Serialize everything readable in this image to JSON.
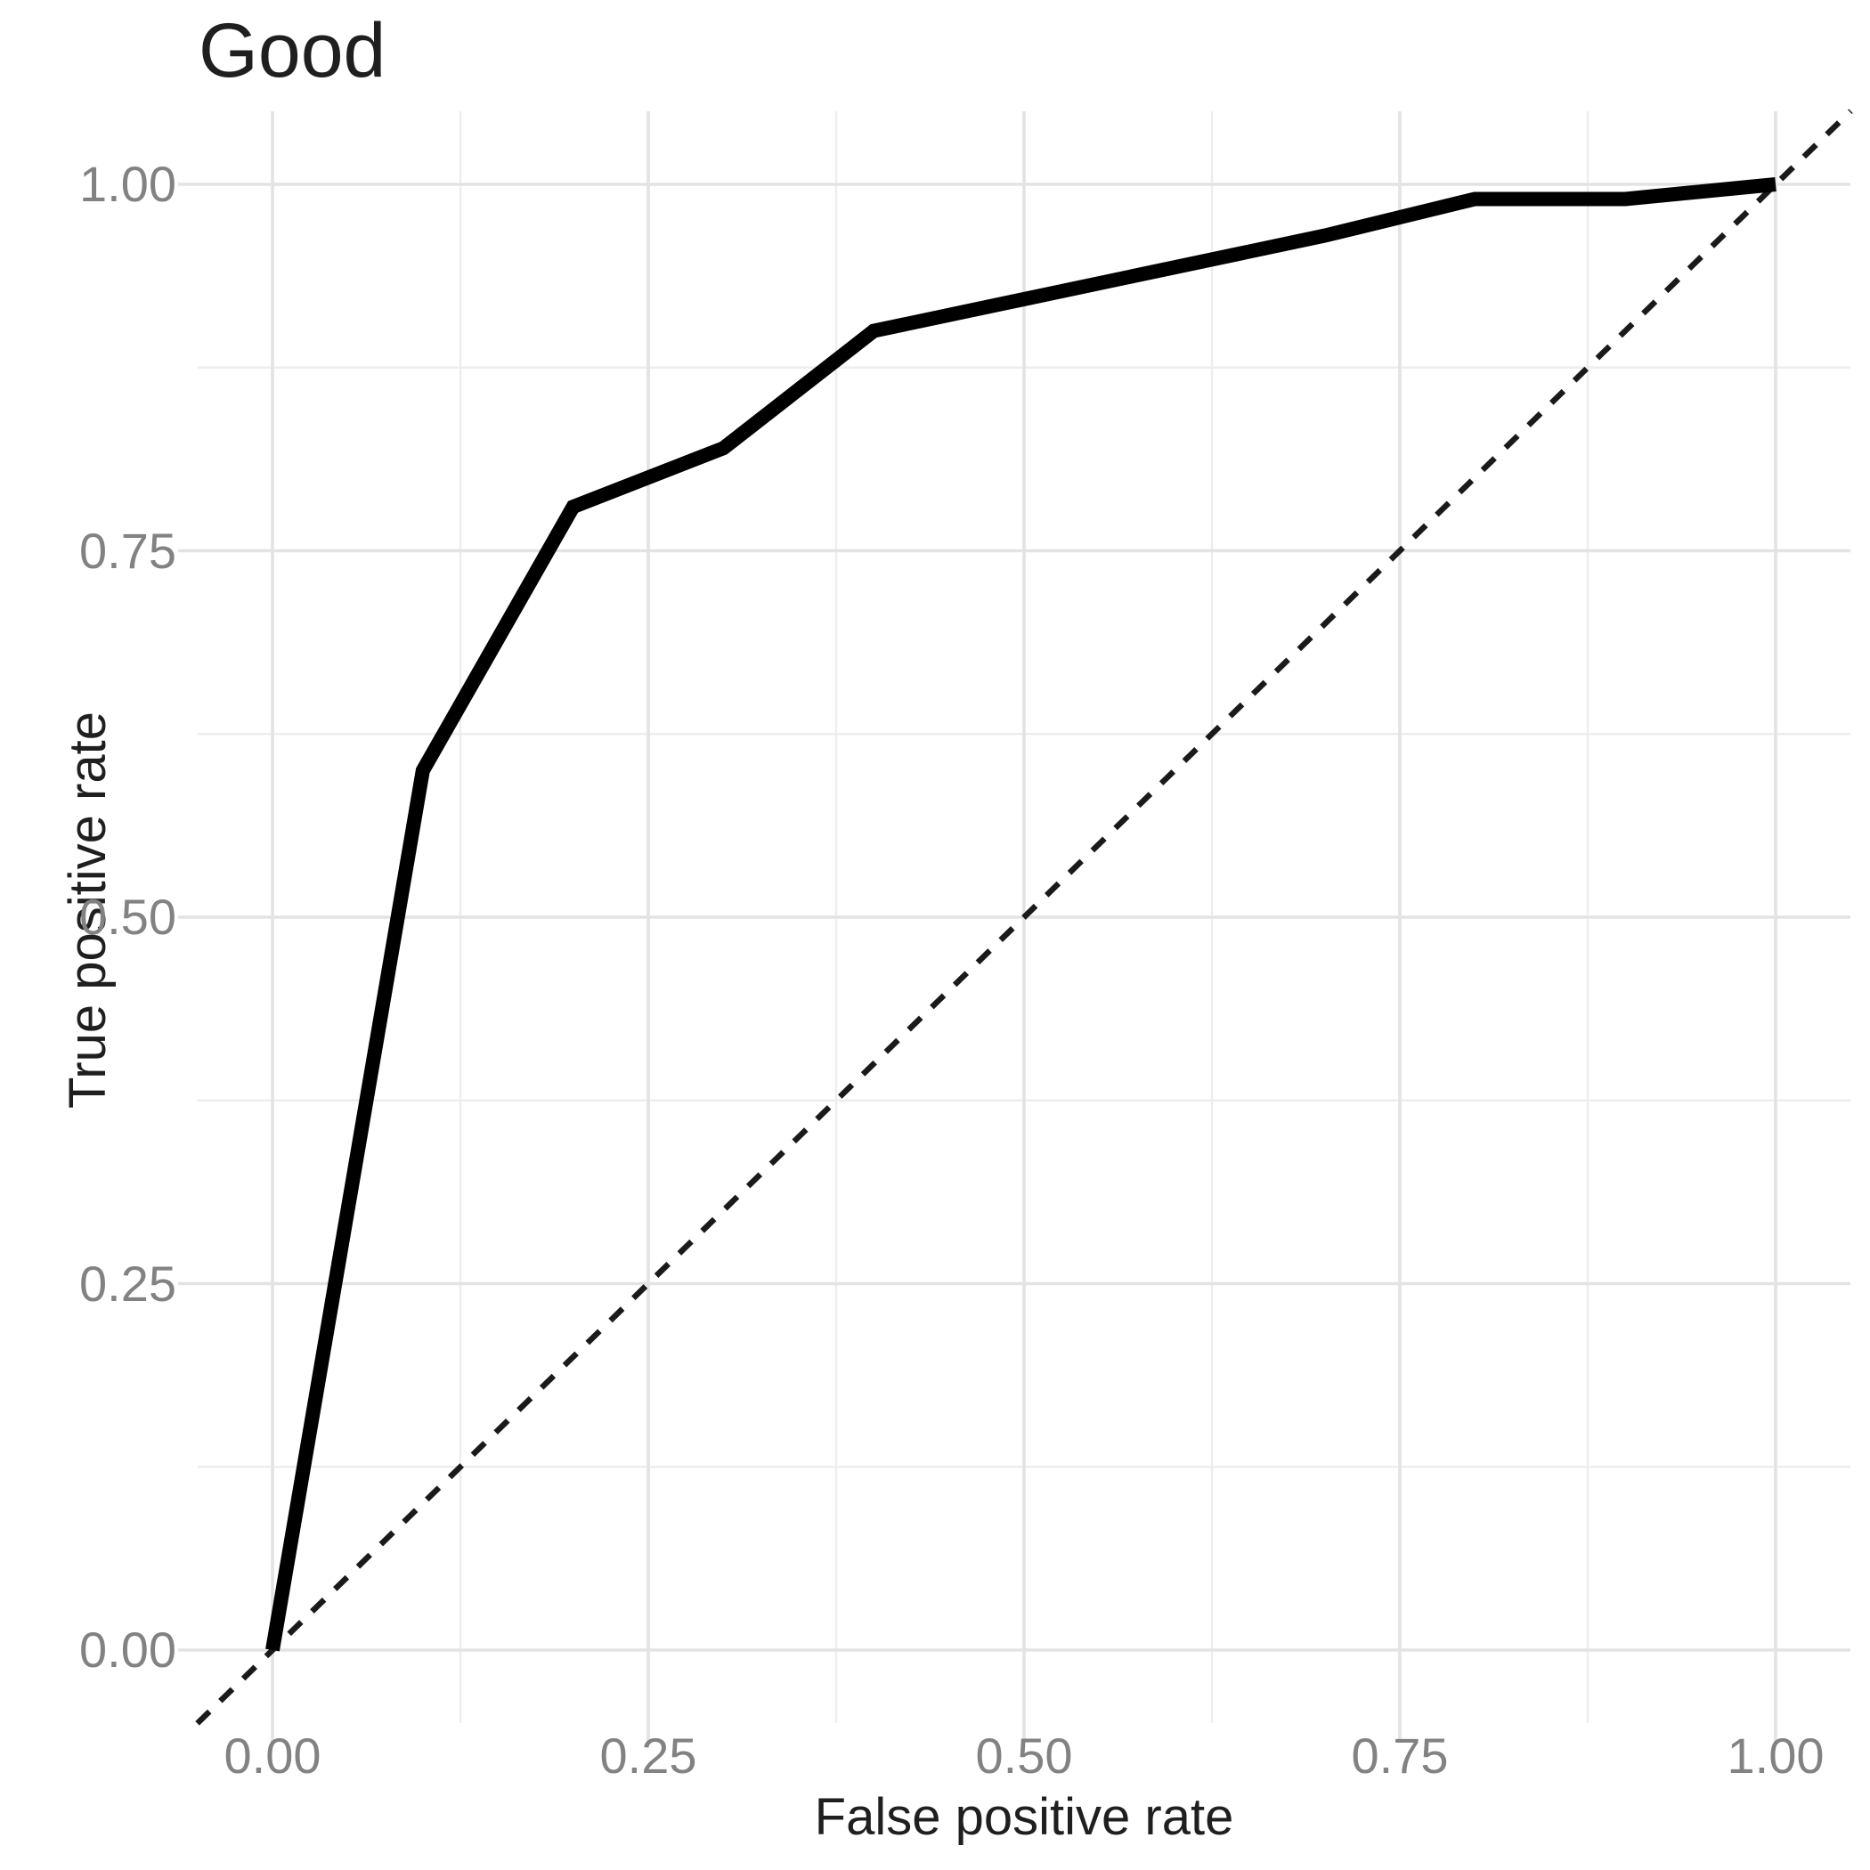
{
  "figure": {
    "title": "Good"
  },
  "chart_data": {
    "type": "line",
    "title": "Good",
    "subtitle": "",
    "xlabel": "False positive rate",
    "ylabel": "True positive rate",
    "xlim": [
      0,
      1
    ],
    "ylim": [
      0,
      1
    ],
    "grid": "major and minor gridlines, light gray on white panel",
    "legend_position": "none",
    "x_axis": {
      "label": "False positive rate",
      "tick_values": [
        0,
        0.25,
        0.5,
        0.75,
        1.0
      ],
      "tick_labels": [
        "0.00",
        "0.25",
        "0.50",
        "0.75",
        "1.00"
      ],
      "minor_tick_values": [
        0.125,
        0.375,
        0.625,
        0.875
      ]
    },
    "y_axis": {
      "label": "True positive rate",
      "tick_values": [
        0,
        0.25,
        0.5,
        0.75,
        1.0
      ],
      "tick_labels": [
        "0.00",
        "0.25",
        "0.50",
        "0.75",
        "1.00"
      ],
      "minor_tick_values": [
        0.125,
        0.375,
        0.625,
        0.875
      ]
    },
    "series": [
      {
        "name": "chance-diagonal",
        "style": "dashed",
        "color": "#1A1A1A",
        "width": 6.5,
        "dash": [
          19,
          17
        ],
        "points": [
          [
            -0.05,
            -0.05
          ],
          [
            1.05,
            1.05
          ]
        ]
      },
      {
        "name": "roc-curve",
        "style": "solid",
        "color": "#000000",
        "width": 16,
        "dash": null,
        "points": [
          [
            0,
            0
          ],
          [
            0.1,
            0.6
          ],
          [
            0.2,
            0.78
          ],
          [
            0.3,
            0.82
          ],
          [
            0.4,
            0.9
          ],
          [
            0.7,
            0.965
          ],
          [
            0.8,
            0.99
          ],
          [
            0.9,
            0.99
          ],
          [
            1.0,
            1.0
          ]
        ]
      }
    ],
    "colors": {
      "background": "#FFFFFF",
      "grid_major": "#E3E3E3",
      "grid_minor": "#EDEDED",
      "tick_mark": "#E3E3E3",
      "tick_label": "#828282",
      "axis_title": "#1F1F1F",
      "title": "#1F1F1F"
    }
  }
}
